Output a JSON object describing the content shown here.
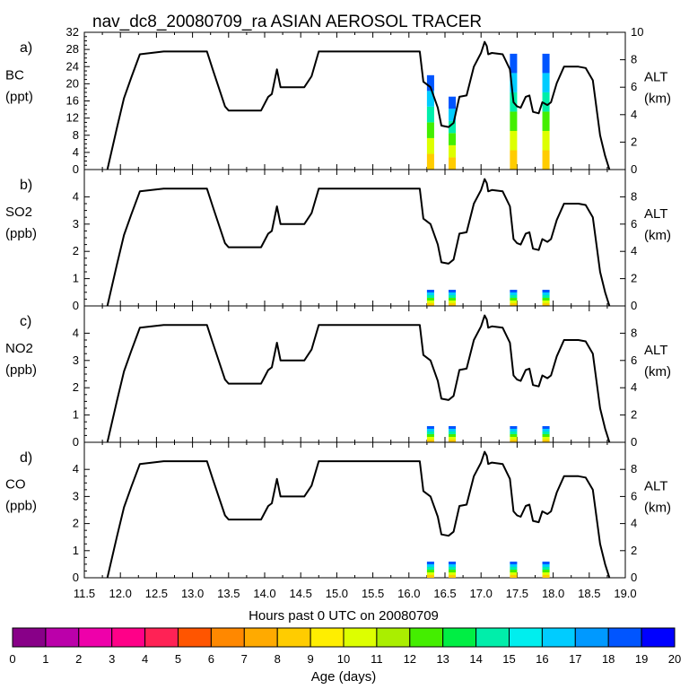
{
  "chart_data": {
    "type": "line",
    "title": "nav_dc8_20080709_ra ASIAN AEROSOL TRACER",
    "xlabel": "Hours past 0 UTC on 20080709",
    "xlim": [
      11.5,
      19.0
    ],
    "xticks": [
      "11.5",
      "12.0",
      "12.5",
      "13.0",
      "13.5",
      "14.0",
      "14.5",
      "15.0",
      "15.5",
      "16.0",
      "16.5",
      "17.0",
      "17.5",
      "18.0",
      "18.5",
      "19.0"
    ],
    "right_axis": {
      "label": "ALT",
      "unit": "(km)",
      "ylim": [
        0,
        10
      ],
      "ticks": [
        "0",
        "2",
        "4",
        "6",
        "8",
        "10"
      ]
    },
    "panels": [
      {
        "letter": "a)",
        "species": "BC",
        "unit": "(ppt)",
        "ylim": [
          0,
          32
        ],
        "yticks": [
          "0",
          "4",
          "8",
          "12",
          "16",
          "20",
          "24",
          "28",
          "32"
        ],
        "max_tick": 32,
        "alt_ticks": [
          "0",
          "2",
          "4",
          "6",
          "8",
          "10"
        ]
      },
      {
        "letter": "b)",
        "species": "SO2",
        "unit": "(ppb)",
        "ylim": [
          0,
          5
        ],
        "yticks": [
          "0",
          "1",
          "2",
          "3",
          "4"
        ],
        "max_tick": 4,
        "alt_ticks": [
          "0",
          "2",
          "4",
          "6",
          "8"
        ]
      },
      {
        "letter": "c)",
        "species": "NO2",
        "unit": "(ppb)",
        "ylim": [
          0,
          5
        ],
        "yticks": [
          "0",
          "1",
          "2",
          "3",
          "4"
        ],
        "max_tick": 4,
        "alt_ticks": [
          "0",
          "2",
          "4",
          "6",
          "8"
        ]
      },
      {
        "letter": "d)",
        "species": "CO",
        "unit": "(ppb)",
        "ylim": [
          0,
          5
        ],
        "yticks": [
          "0",
          "1",
          "2",
          "3",
          "4"
        ],
        "max_tick": 4,
        "alt_ticks": [
          "0",
          "2",
          "4",
          "6",
          "8"
        ]
      }
    ],
    "altitude_series": {
      "name": "ALT (km)",
      "x": [
        11.82,
        11.95,
        12.05,
        12.15,
        12.27,
        12.6,
        13.2,
        13.28,
        13.45,
        13.5,
        13.75,
        13.95,
        14.05,
        14.1,
        14.17,
        14.22,
        14.35,
        14.55,
        14.65,
        14.75,
        15.0,
        16.15,
        16.2,
        16.3,
        16.4,
        16.45,
        16.55,
        16.62,
        16.7,
        16.8,
        16.9,
        17.0,
        17.05,
        17.08,
        17.1,
        17.15,
        17.3,
        17.4,
        17.45,
        17.5,
        17.55,
        17.62,
        17.67,
        17.72,
        17.8,
        17.85,
        17.92,
        17.97,
        18.05,
        18.15,
        18.35,
        18.45,
        18.55,
        18.65,
        18.72,
        18.78
      ],
      "y": [
        0,
        3.0,
        5.2,
        6.7,
        8.4,
        8.6,
        8.6,
        7.3,
        4.6,
        4.3,
        4.3,
        4.3,
        5.3,
        5.5,
        7.3,
        6.0,
        6.0,
        6.0,
        6.8,
        8.6,
        8.6,
        8.6,
        6.4,
        6.0,
        4.5,
        3.2,
        3.1,
        3.4,
        5.3,
        5.4,
        7.5,
        8.5,
        9.3,
        9.0,
        8.4,
        8.5,
        8.4,
        7.3,
        4.9,
        4.6,
        4.5,
        5.3,
        5.4,
        4.2,
        4.1,
        4.9,
        4.7,
        4.9,
        6.3,
        7.5,
        7.5,
        7.4,
        6.5,
        2.5,
        1.0,
        0
      ]
    },
    "bc_columns": [
      {
        "x": 16.3,
        "value": 22
      },
      {
        "x": 16.6,
        "value": 17
      },
      {
        "x": 17.45,
        "value": 27
      },
      {
        "x": 17.9,
        "value": 27
      }
    ],
    "colorbar": {
      "label": "Age (days)",
      "ticks": [
        "0",
        "1",
        "2",
        "3",
        "4",
        "5",
        "6",
        "7",
        "8",
        "9",
        "10",
        "11",
        "12",
        "13",
        "14",
        "15",
        "16",
        "17",
        "18",
        "19",
        "20"
      ],
      "colors": [
        "#880088",
        "#bb00aa",
        "#ee00aa",
        "#ff0088",
        "#ff2255",
        "#ff5500",
        "#ff8800",
        "#ffaa00",
        "#ffcc00",
        "#ffee00",
        "#ddff00",
        "#aaee00",
        "#44ee00",
        "#00ee44",
        "#00eeaa",
        "#00eeee",
        "#00ccff",
        "#0099ff",
        "#0055ff",
        "#0000ff",
        "#6600ff"
      ]
    }
  }
}
